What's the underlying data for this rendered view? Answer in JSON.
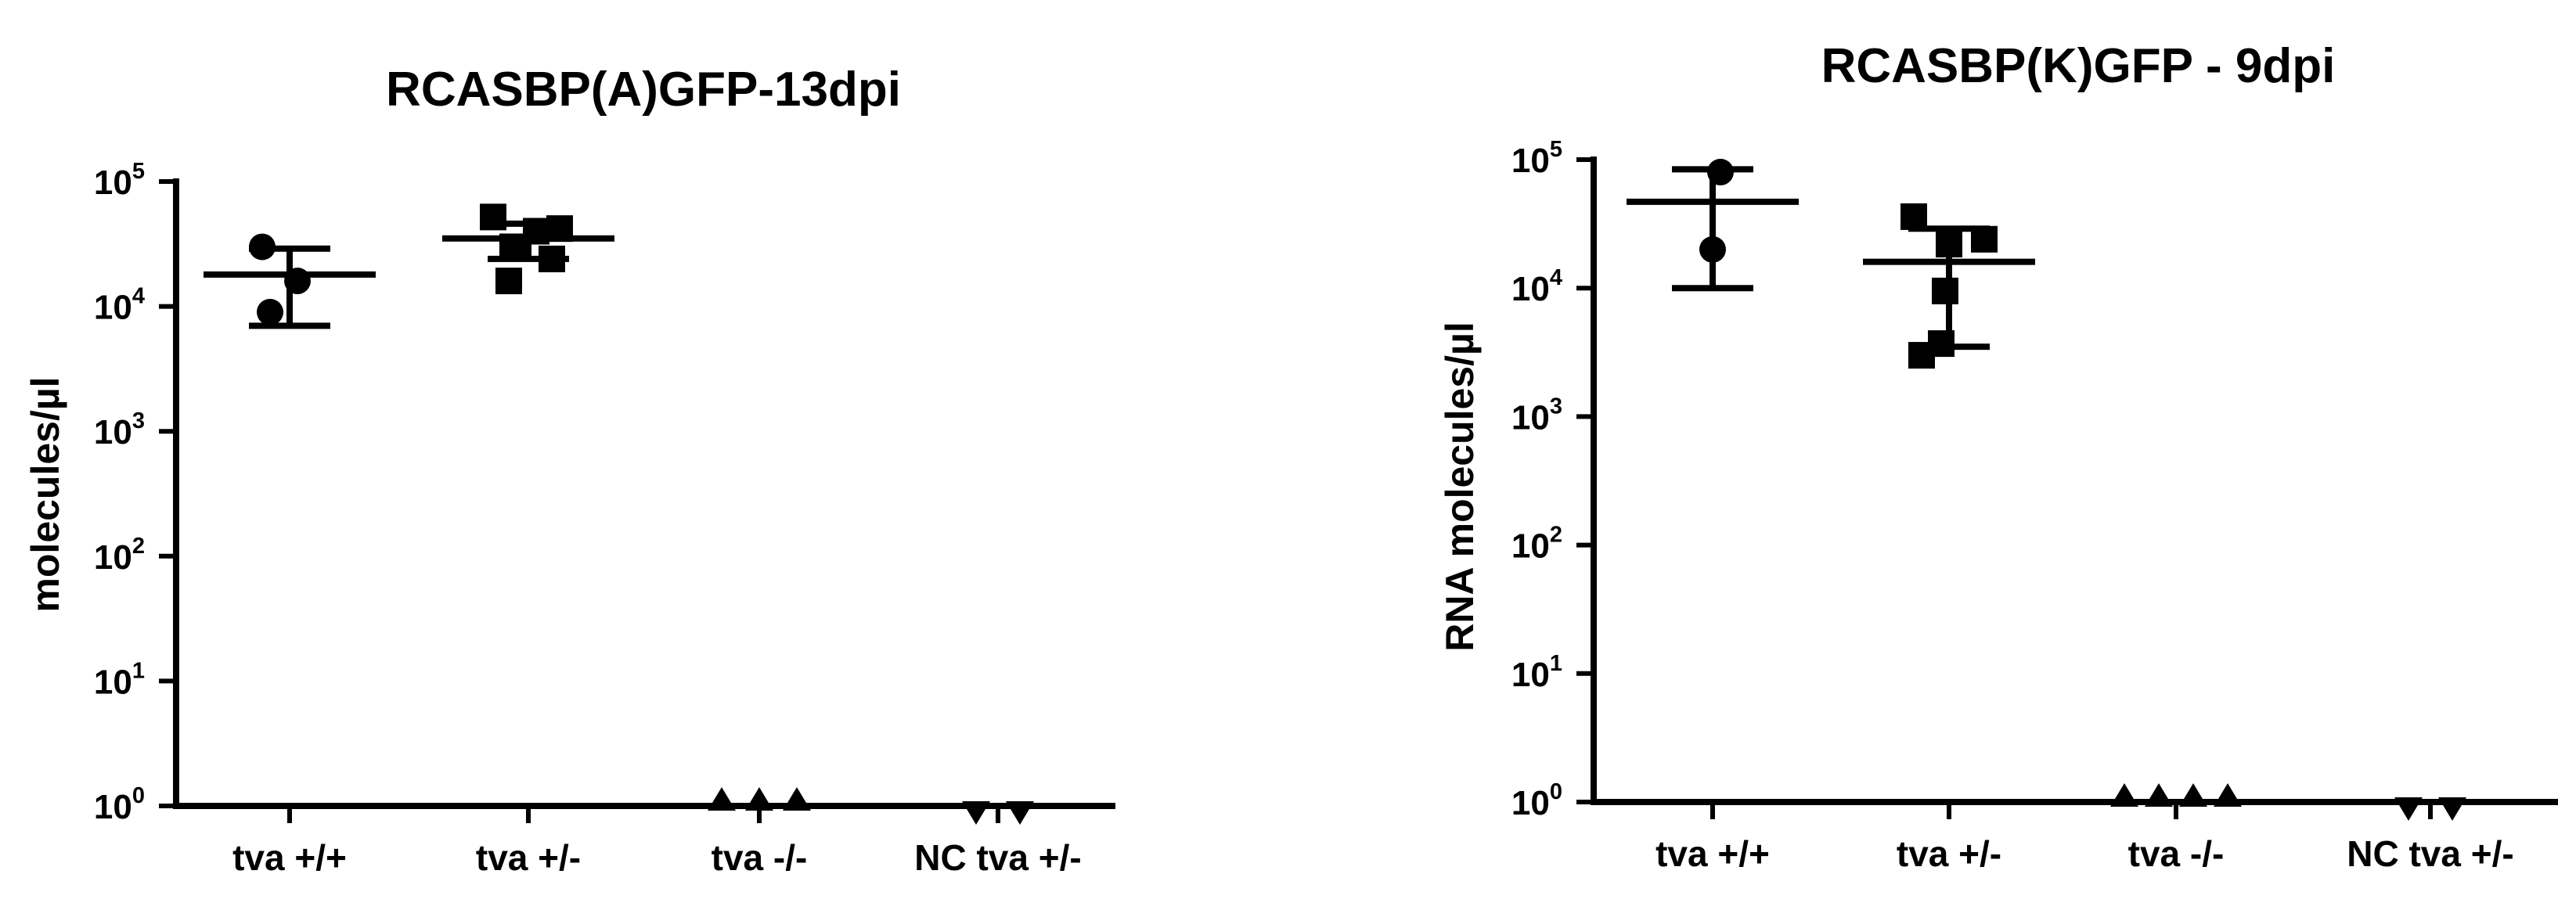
{
  "chart_data": [
    {
      "type": "scatter",
      "title": "RCASBP(A)GFP-13dpi",
      "ylabel": "molecules/µl",
      "yscale": "log",
      "ylim": [
        1,
        100000
      ],
      "yticks": [
        {
          "base": "10",
          "exp": "0"
        },
        {
          "base": "10",
          "exp": "1"
        },
        {
          "base": "10",
          "exp": "2"
        },
        {
          "base": "10",
          "exp": "3"
        },
        {
          "base": "10",
          "exp": "4"
        },
        {
          "base": "10",
          "exp": "5"
        }
      ],
      "categories": [
        "tva +/+",
        "tva +/-",
        "tva -/-",
        "NC tva +/-"
      ],
      "groups": [
        {
          "category": "tva +/+",
          "marker": "circle",
          "points": [
            30000,
            16000,
            9000
          ],
          "mean": 18000,
          "err_low": 7000,
          "err_high": 29000
        },
        {
          "category": "tva +/-",
          "marker": "square",
          "points": [
            52000,
            42000,
            40000,
            30000,
            24000,
            16000
          ],
          "mean": 35000,
          "err_low": 24000,
          "err_high": 46000
        },
        {
          "category": "tva -/-",
          "marker": "triangle-up",
          "points": [
            1,
            1,
            1
          ]
        },
        {
          "category": "NC tva +/-",
          "marker": "triangle-down",
          "points": [
            1,
            1
          ]
        }
      ]
    },
    {
      "type": "scatter",
      "title": "RCASBP(K)GFP - 9dpi",
      "ylabel": "RNA molecules/µl",
      "yscale": "log",
      "ylim": [
        1,
        100000
      ],
      "yticks": [
        {
          "base": "10",
          "exp": "0"
        },
        {
          "base": "10",
          "exp": "1"
        },
        {
          "base": "10",
          "exp": "2"
        },
        {
          "base": "10",
          "exp": "3"
        },
        {
          "base": "10",
          "exp": "4"
        },
        {
          "base": "10",
          "exp": "5"
        }
      ],
      "categories": [
        "tva +/+",
        "tva +/-",
        "tva -/-",
        "NC tva +/-"
      ],
      "groups": [
        {
          "category": "tva +/+",
          "marker": "circle",
          "points": [
            80000,
            20000
          ],
          "mean": 47000,
          "err_low": 10000,
          "err_high": 84000
        },
        {
          "category": "tva +/-",
          "marker": "square",
          "points": [
            36000,
            24000,
            22000,
            9500,
            3700,
            3000
          ],
          "mean": 16000,
          "err_low": 3500,
          "err_high": 29000
        },
        {
          "category": "tva -/-",
          "marker": "triangle-up",
          "points": [
            1,
            1,
            1,
            1
          ]
        },
        {
          "category": "NC tva +/-",
          "marker": "triangle-down",
          "points": [
            1,
            1
          ]
        }
      ]
    }
  ]
}
